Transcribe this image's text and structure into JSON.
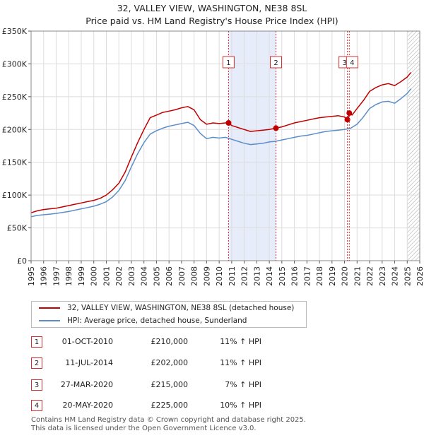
{
  "chart_data": {
    "type": "line",
    "title": "32, VALLEY VIEW, WASHINGTON, NE38 8SL",
    "subtitle": "Price paid vs. HM Land Registry's House Price Index (HPI)",
    "xlabel": "",
    "ylabel": "",
    "xlim": [
      1995,
      2026
    ],
    "ylim": [
      0,
      350000
    ],
    "x_ticks": [
      "1995",
      "1996",
      "1997",
      "1998",
      "1999",
      "2000",
      "2001",
      "2002",
      "2003",
      "2004",
      "2005",
      "2006",
      "2007",
      "2008",
      "2009",
      "2010",
      "2011",
      "2012",
      "2013",
      "2014",
      "2015",
      "2016",
      "2017",
      "2018",
      "2019",
      "2020",
      "2021",
      "2022",
      "2023",
      "2024",
      "2025",
      "2026"
    ],
    "y_ticks": [
      {
        "value": 0,
        "label": "£0"
      },
      {
        "value": 50000,
        "label": "£50K"
      },
      {
        "value": 100000,
        "label": "£100K"
      },
      {
        "value": 150000,
        "label": "£150K"
      },
      {
        "value": 200000,
        "label": "£200K"
      },
      {
        "value": 250000,
        "label": "£250K"
      },
      {
        "value": 300000,
        "label": "£300K"
      },
      {
        "value": 350000,
        "label": "£350K"
      }
    ],
    "grid": true,
    "shaded_period": [
      2010.75,
      2014.53
    ],
    "forecast_start": 2025.0,
    "series": [
      {
        "name": "32, VALLEY VIEW, WASHINGTON, NE38 8SL (detached house)",
        "color": "#c00000",
        "x": [
          1995.0,
          1995.5,
          1996.0,
          1996.5,
          1997.0,
          1997.5,
          1998.0,
          1998.5,
          1999.0,
          1999.5,
          2000.0,
          2000.5,
          2001.0,
          2001.5,
          2002.0,
          2002.5,
          2003.0,
          2003.5,
          2004.0,
          2004.5,
          2005.0,
          2005.5,
          2006.0,
          2006.5,
          2007.0,
          2007.5,
          2008.0,
          2008.5,
          2009.0,
          2009.5,
          2010.0,
          2010.5,
          2010.75,
          2011.0,
          2011.5,
          2012.0,
          2012.5,
          2013.0,
          2013.5,
          2014.0,
          2014.53,
          2015.0,
          2015.5,
          2016.0,
          2016.5,
          2017.0,
          2017.5,
          2018.0,
          2018.5,
          2019.0,
          2019.5,
          2020.0,
          2020.23,
          2020.38,
          2020.6,
          2021.0,
          2021.5,
          2022.0,
          2022.5,
          2023.0,
          2023.5,
          2024.0,
          2024.5,
          2025.0,
          2025.3
        ],
        "values": [
          73000,
          76000,
          78000,
          79000,
          80000,
          82000,
          84000,
          86000,
          88000,
          90000,
          92000,
          95000,
          100000,
          108000,
          118000,
          135000,
          158000,
          180000,
          200000,
          218000,
          222000,
          226000,
          228000,
          230000,
          233000,
          235000,
          230000,
          215000,
          208000,
          210000,
          209000,
          210000,
          210000,
          206000,
          203000,
          200000,
          197000,
          198000,
          199000,
          200000,
          202000,
          204000,
          207000,
          210000,
          212000,
          214000,
          216000,
          218000,
          219000,
          220000,
          221000,
          219000,
          215000,
          225000,
          222000,
          232000,
          244000,
          258000,
          264000,
          268000,
          270000,
          267000,
          273000,
          280000,
          287000
        ]
      },
      {
        "name": "HPI: Average price, detached house, Sunderland",
        "color": "#5b8ec9",
        "x": [
          1995.0,
          1995.5,
          1996.0,
          1996.5,
          1997.0,
          1997.5,
          1998.0,
          1998.5,
          1999.0,
          1999.5,
          2000.0,
          2000.5,
          2001.0,
          2001.5,
          2002.0,
          2002.5,
          2003.0,
          2003.5,
          2004.0,
          2004.5,
          2005.0,
          2005.5,
          2006.0,
          2006.5,
          2007.0,
          2007.5,
          2008.0,
          2008.5,
          2009.0,
          2009.5,
          2010.0,
          2010.5,
          2011.0,
          2011.5,
          2012.0,
          2012.5,
          2013.0,
          2013.5,
          2014.0,
          2014.5,
          2015.0,
          2015.5,
          2016.0,
          2016.5,
          2017.0,
          2017.5,
          2018.0,
          2018.5,
          2019.0,
          2019.5,
          2020.0,
          2020.5,
          2021.0,
          2021.5,
          2022.0,
          2022.5,
          2023.0,
          2023.5,
          2024.0,
          2024.5,
          2025.0,
          2025.3
        ],
        "values": [
          67000,
          69000,
          70000,
          71000,
          72000,
          73500,
          75000,
          77000,
          79000,
          81000,
          83000,
          86000,
          90000,
          97000,
          107000,
          122000,
          143000,
          163000,
          180000,
          193000,
          198000,
          202000,
          205000,
          207000,
          209000,
          211000,
          206000,
          194000,
          186000,
          188000,
          187000,
          188000,
          185000,
          182000,
          179000,
          177000,
          178000,
          179000,
          181000,
          182000,
          184000,
          186000,
          188000,
          190000,
          191000,
          193000,
          195000,
          197000,
          198000,
          199000,
          200000,
          202000,
          208000,
          219000,
          232000,
          238000,
          242000,
          243000,
          240000,
          247000,
          255000,
          262000
        ]
      }
    ],
    "transactions": [
      {
        "num": "1",
        "x": 2010.75,
        "value": 210000,
        "date": "01-OCT-2010",
        "price": "£210,000",
        "hpi": "11% ↑ HPI"
      },
      {
        "num": "2",
        "x": 2014.53,
        "value": 202000,
        "date": "11-JUL-2014",
        "price": "£202,000",
        "hpi": "11% ↑ HPI"
      },
      {
        "num": "3",
        "x": 2020.23,
        "value": 215000,
        "date": "27-MAR-2020",
        "price": "£215,000",
        "hpi": "7% ↑ HPI"
      },
      {
        "num": "4",
        "x": 2020.38,
        "value": 225000,
        "date": "20-MAY-2020",
        "price": "£225,000",
        "hpi": "10% ↑ HPI"
      }
    ]
  },
  "footer": {
    "line1": "Contains HM Land Registry data © Crown copyright and database right 2025.",
    "line2": "This data is licensed under the Open Government Licence v3.0."
  }
}
